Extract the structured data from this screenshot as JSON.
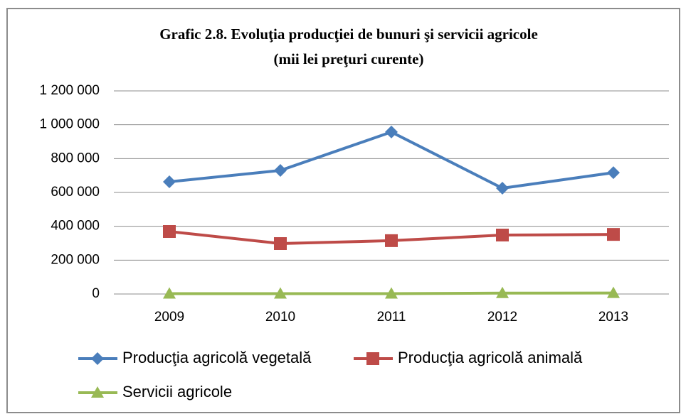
{
  "chart_data": {
    "type": "line",
    "title": "Grafic 2.8. Evoluţia producţiei de bunuri şi servicii agricole",
    "subtitle": "(mii lei preţuri curente)",
    "categories": [
      "2009",
      "2010",
      "2011",
      "2012",
      "2013"
    ],
    "series": [
      {
        "name": "Producţia agricolă vegetală",
        "color": "#4a7ebb",
        "marker": "diamond",
        "values": [
          663000,
          730000,
          957000,
          625000,
          717000
        ]
      },
      {
        "name": "Producţia agricolă animală",
        "color": "#be4b48",
        "marker": "square",
        "values": [
          369000,
          298000,
          315000,
          348000,
          352000
        ]
      },
      {
        "name": "Servicii agricole",
        "color": "#98b954",
        "marker": "triangle",
        "values": [
          2000,
          2000,
          2000,
          5000,
          6000
        ]
      }
    ],
    "ylim": [
      0,
      1200000
    ],
    "yticks": [
      0,
      {
        "value": 200000,
        "label": "200 000"
      },
      {
        "value": 400000,
        "label": "400 000"
      },
      {
        "value": 600000,
        "label": "600 000"
      },
      {
        "value": 800000,
        "label": "800 000"
      },
      {
        "value": 1000000,
        "label": "1 000 000"
      },
      {
        "value": 1200000,
        "label": "1 200 000"
      }
    ],
    "grid": true
  }
}
